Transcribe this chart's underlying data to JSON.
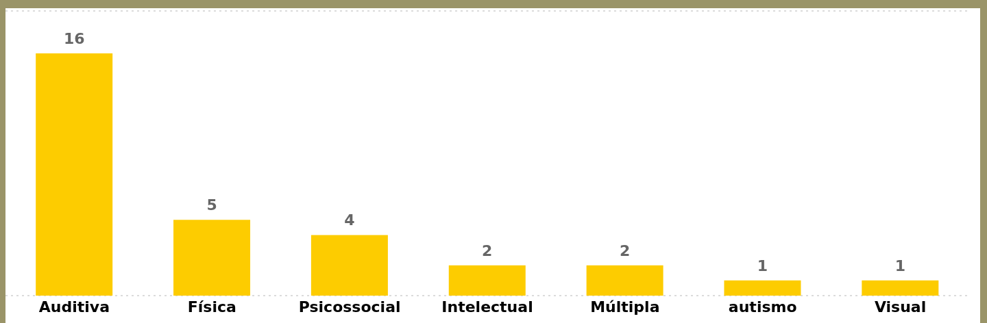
{
  "chart_data": {
    "type": "bar",
    "categories": [
      "Auditiva",
      "Física",
      "Psicossocial",
      "Intelectual",
      "Múltipla",
      "autismo",
      "Visual"
    ],
    "values": [
      16,
      5,
      4,
      2,
      2,
      1,
      1
    ],
    "color": "#fdcc00",
    "data_labels": true,
    "ylim": [
      0,
      18.8
    ],
    "grid": "y",
    "tick_labels": "x"
  }
}
